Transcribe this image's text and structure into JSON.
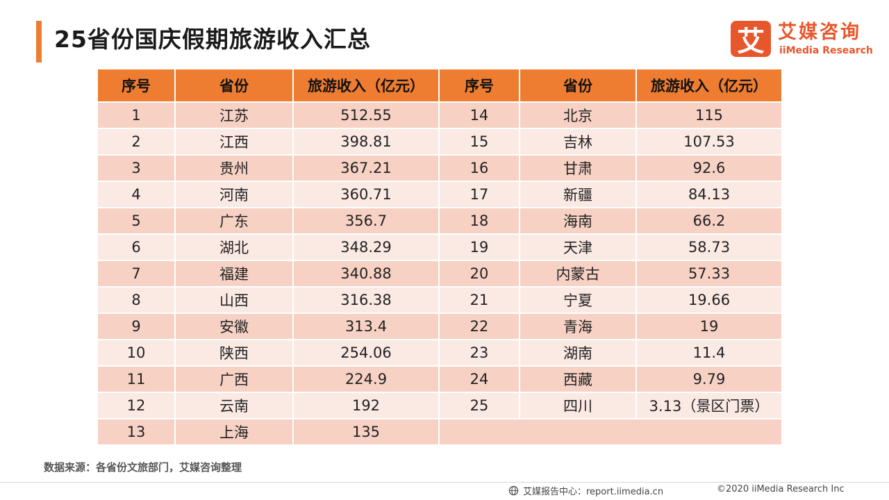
{
  "title": "25省份国庆假期旅游收入汇总",
  "logo": {
    "mark": "艾",
    "name_cn": "艾媒咨询",
    "name_en": "iiMedia Research"
  },
  "table": {
    "headers": [
      "序号",
      "省份",
      "旅游收入（亿元）",
      "序号",
      "省份",
      "旅游收入（亿元）"
    ],
    "rows": [
      [
        "1",
        "江苏",
        "512.55",
        "14",
        "北京",
        "115"
      ],
      [
        "2",
        "江西",
        "398.81",
        "15",
        "吉林",
        "107.53"
      ],
      [
        "3",
        "贵州",
        "367.21",
        "16",
        "甘肃",
        "92.6"
      ],
      [
        "4",
        "河南",
        "360.71",
        "17",
        "新疆",
        "84.13"
      ],
      [
        "5",
        "广东",
        "356.7",
        "18",
        "海南",
        "66.2"
      ],
      [
        "6",
        "湖北",
        "348.29",
        "19",
        "天津",
        "58.73"
      ],
      [
        "7",
        "福建",
        "340.88",
        "20",
        "内蒙古",
        "57.33"
      ],
      [
        "8",
        "山西",
        "316.38",
        "21",
        "宁夏",
        "19.66"
      ],
      [
        "9",
        "安徽",
        "313.4",
        "22",
        "青海",
        "19"
      ],
      [
        "10",
        "陕西",
        "254.06",
        "23",
        "湖南",
        "11.4"
      ],
      [
        "11",
        "广西",
        "224.9",
        "24",
        "西藏",
        "9.79"
      ],
      [
        "12",
        "云南",
        "192",
        "25",
        "四川",
        "3.13（景区门票）"
      ],
      [
        "13",
        "上海",
        "135",
        "",
        "",
        ""
      ]
    ]
  },
  "source": "数据来源：各省份文旅部门，艾媒咨询整理",
  "footer": {
    "left": "艾媒报告中心：report.iimedia.cn",
    "right": "©2020  iiMedia Research  Inc"
  },
  "colors": {
    "accent": "#ee7d31",
    "row_odd": "#f7d2c4",
    "row_even": "#fbe9e4",
    "brand": "#e8562b"
  }
}
